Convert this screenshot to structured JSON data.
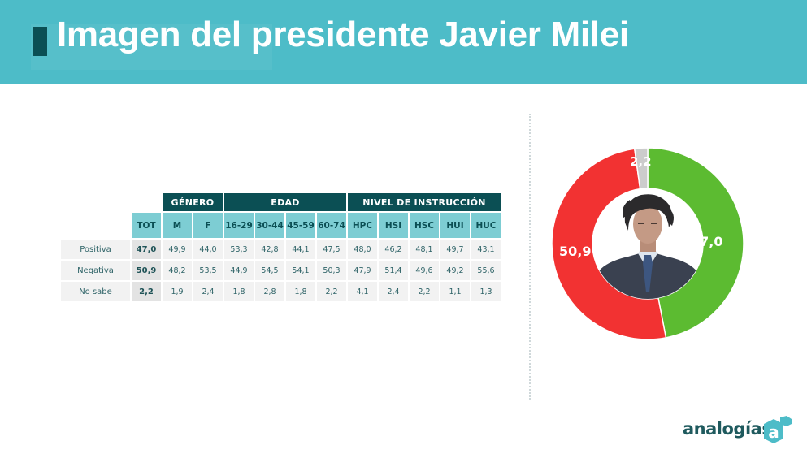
{
  "header": {
    "title": "Imagen del presidente Javier Milei"
  },
  "table": {
    "groups": [
      {
        "label": "GÉNERO",
        "span": 2
      },
      {
        "label": "EDAD",
        "span": 4
      },
      {
        "label": "NIVEL DE INSTRUCCIÓN",
        "span": 5
      }
    ],
    "columns": [
      "TOT",
      "M",
      "F",
      "16-29",
      "30-44",
      "45-59",
      "60-74",
      "HPC",
      "HSI",
      "HSC",
      "HUI",
      "HUC"
    ],
    "rows": [
      {
        "label": "Positiva",
        "values": [
          "47,0",
          "49,9",
          "44,0",
          "53,3",
          "42,8",
          "44,1",
          "47,5",
          "48,0",
          "46,2",
          "48,1",
          "49,7",
          "43,1"
        ]
      },
      {
        "label": "Negativa",
        "values": [
          "50,9",
          "48,2",
          "53,5",
          "44,9",
          "54,5",
          "54,1",
          "50,3",
          "47,9",
          "51,4",
          "49,6",
          "49,2",
          "55,6"
        ]
      },
      {
        "label": "No sabe",
        "values": [
          "2,2",
          "1,9",
          "2,4",
          "1,8",
          "2,8",
          "1,8",
          "2,2",
          "4,1",
          "2,4",
          "2,2",
          "1,1",
          "1,3"
        ]
      }
    ]
  },
  "donut": {
    "labels": {
      "positiva": "47,0",
      "negativa": "50,9",
      "nosabe": "2,2"
    }
  },
  "colors": {
    "header_bg": "#4dbcc8",
    "accent_dark": "#0b4f54",
    "subheader_bg": "#7dcdd3",
    "positiva": "#5cbb31",
    "negativa": "#f23232",
    "nosabe": "#cccccc"
  },
  "logo": {
    "text": "analogías",
    "mark": "a"
  },
  "chart_data": [
    {
      "type": "table",
      "title": "Imagen del presidente Javier Milei",
      "column_groups": [
        {
          "name": "",
          "columns": [
            "TOT"
          ]
        },
        {
          "name": "GÉNERO",
          "columns": [
            "M",
            "F"
          ]
        },
        {
          "name": "EDAD",
          "columns": [
            "16-29",
            "30-44",
            "45-59",
            "60-74"
          ]
        },
        {
          "name": "NIVEL DE INSTRUCCIÓN",
          "columns": [
            "HPC",
            "HSI",
            "HSC",
            "HUI",
            "HUC"
          ]
        }
      ],
      "categories": [
        "TOT",
        "M",
        "F",
        "16-29",
        "30-44",
        "45-59",
        "60-74",
        "HPC",
        "HSI",
        "HSC",
        "HUI",
        "HUC"
      ],
      "series": [
        {
          "name": "Positiva",
          "values": [
            47.0,
            49.9,
            44.0,
            53.3,
            42.8,
            44.1,
            47.5,
            48.0,
            46.2,
            48.1,
            49.7,
            43.1
          ]
        },
        {
          "name": "Negativa",
          "values": [
            50.9,
            48.2,
            53.5,
            44.9,
            54.5,
            54.1,
            50.3,
            47.9,
            51.4,
            49.6,
            49.2,
            55.6
          ]
        },
        {
          "name": "No sabe",
          "values": [
            2.2,
            1.9,
            2.4,
            1.8,
            2.8,
            1.8,
            2.2,
            4.1,
            2.4,
            2.2,
            1.1,
            1.3
          ]
        }
      ]
    },
    {
      "type": "pie",
      "subtype": "donut",
      "title": "Imagen del presidente Javier Milei",
      "categories": [
        "Positiva",
        "Negativa",
        "No sabe"
      ],
      "values": [
        47.0,
        50.9,
        2.2
      ],
      "colors": [
        "#5cbb31",
        "#f23232",
        "#cccccc"
      ],
      "start_angle": "12 o'clock, clockwise: Positiva, Negativa, No sabe",
      "center_image": "photo of the president"
    }
  ]
}
